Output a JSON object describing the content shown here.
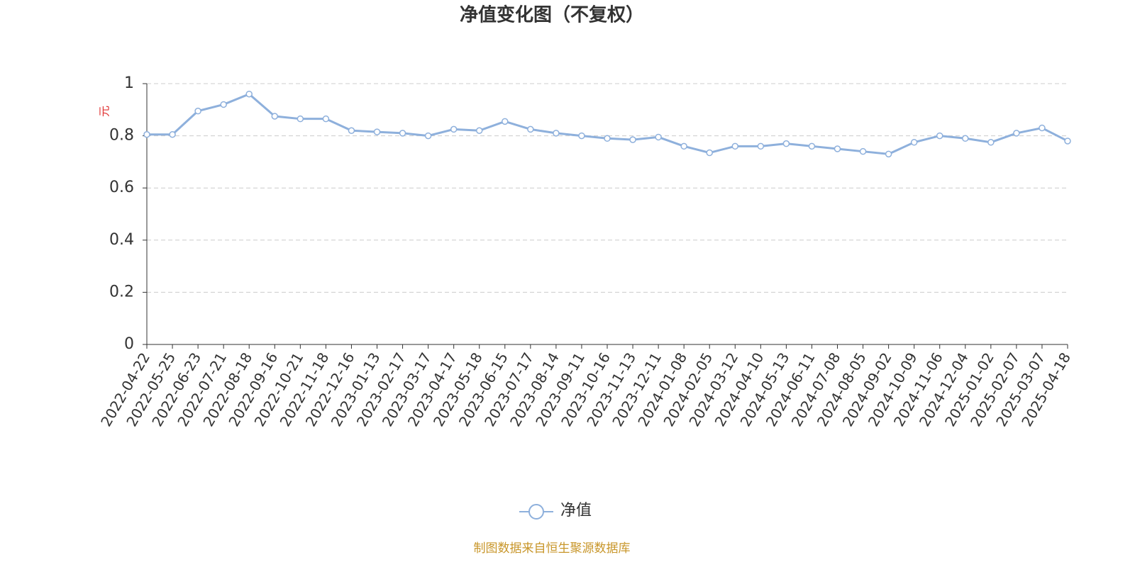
{
  "chart_data": {
    "type": "line",
    "title": "净值变化图（不复权）",
    "y_label": "元",
    "categories": [
      "2022-04-22",
      "2022-05-25",
      "2022-06-23",
      "2022-07-21",
      "2022-08-18",
      "2022-09-16",
      "2022-10-21",
      "2022-11-18",
      "2022-12-16",
      "2023-01-13",
      "2023-02-17",
      "2023-03-17",
      "2023-04-17",
      "2023-05-18",
      "2023-06-15",
      "2023-07-17",
      "2023-08-14",
      "2023-09-11",
      "2023-10-16",
      "2023-11-13",
      "2023-12-11",
      "2024-01-08",
      "2024-02-05",
      "2024-03-12",
      "2024-04-10",
      "2024-05-13",
      "2024-06-11",
      "2024-07-08",
      "2024-08-05",
      "2024-09-02",
      "2024-10-09",
      "2024-11-06",
      "2024-12-04",
      "2025-01-02",
      "2025-02-07",
      "2025-03-07",
      "2025-04-18"
    ],
    "series": [
      {
        "name": "净值",
        "color": "#8eb0dc",
        "values": [
          0.805,
          0.805,
          0.895,
          0.92,
          0.96,
          0.875,
          0.865,
          0.865,
          0.82,
          0.815,
          0.81,
          0.8,
          0.825,
          0.82,
          0.855,
          0.825,
          0.81,
          0.8,
          0.79,
          0.785,
          0.795,
          0.76,
          0.735,
          0.76,
          0.76,
          0.77,
          0.76,
          0.75,
          0.74,
          0.73,
          0.775,
          0.8,
          0.79,
          0.775,
          0.81,
          0.83,
          0.78
        ]
      }
    ],
    "ylim": [
      0,
      1
    ],
    "yticks": [
      0,
      0.2,
      0.4,
      0.6,
      0.8,
      1
    ],
    "grid": true,
    "source": "制图数据来自恒生聚源数据库"
  }
}
